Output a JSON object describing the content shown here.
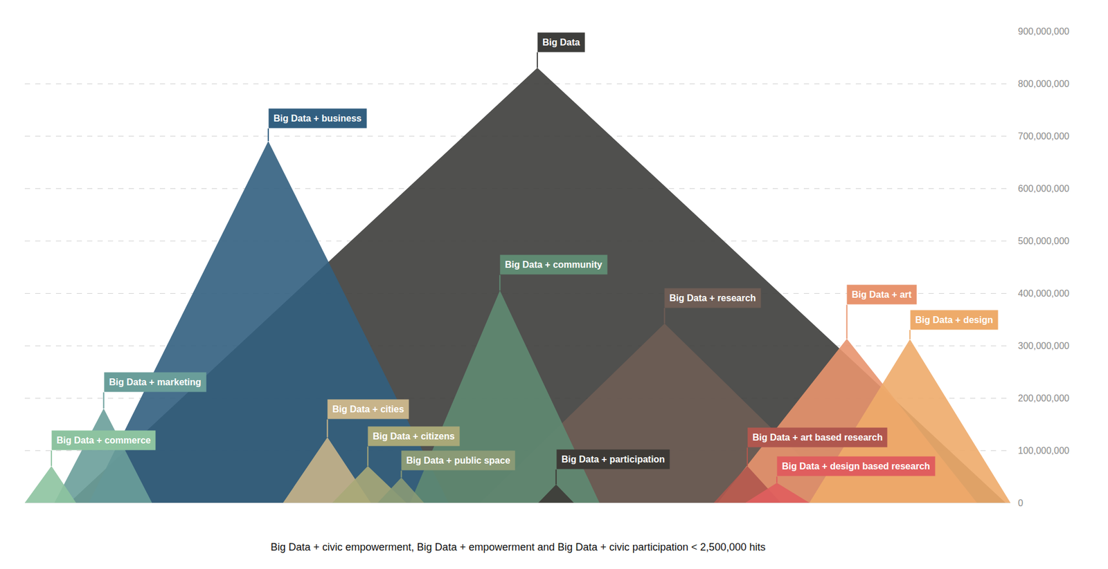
{
  "chart_data": {
    "type": "triangle",
    "note": "Big Data + civic empowerment, Big Data + empowerment and Big Data + civic participation < 2,500,000 hits",
    "xlim": [
      0,
      100
    ],
    "xticks": [],
    "ylim": [
      0,
      900000000
    ],
    "yticks": [
      0,
      {
        "value": 100000000,
        "label": "100,000,000"
      },
      {
        "value": 200000000,
        "label": "200,000,000"
      },
      {
        "value": 300000000,
        "label": "300,000,000"
      },
      {
        "value": 400000000,
        "label": "400,000,000"
      },
      {
        "value": 500000000,
        "label": "500,000,000"
      },
      {
        "value": 600000000,
        "label": "600,000,000"
      },
      {
        "value": 700000000,
        "label": "700,000,000"
      },
      {
        "value": 800000000,
        "label": "800,000,000"
      },
      {
        "value": 900000000,
        "label": "900,000,000"
      }
    ],
    "grid": true,
    "tick_labels": "y",
    "series": [
      {
        "name": "Big Data",
        "color": "#3d3d3b",
        "x": [
          4.5,
          52.0,
          99.5
        ],
        "values": [
          0,
          830000000,
          0
        ]
      },
      {
        "name": "Big Data + business",
        "color": "#325f80",
        "x": [
          6.5,
          24.7,
          43.0
        ],
        "values": [
          0,
          690000000,
          0
        ]
      },
      {
        "name": "Big Data + research",
        "color": "#6e5d55",
        "x": [
          46.2,
          64.9,
          83.5
        ],
        "values": [
          0,
          342000000,
          0
        ]
      },
      {
        "name": "Big Data + community",
        "color": "#5f8a72",
        "x": [
          39.1,
          48.2,
          58.3
        ],
        "values": [
          0,
          405000000,
          0
        ]
      },
      {
        "name": "Big Data + marketing",
        "color": "#6a9e9a",
        "x": [
          3.0,
          8.0,
          12.9
        ],
        "values": [
          0,
          180000000,
          0
        ]
      },
      {
        "name": "Big Data + commerce",
        "color": "#8dc3a0",
        "x": [
          0,
          2.7,
          5.2
        ],
        "values": [
          0,
          70000000,
          0
        ]
      },
      {
        "name": "Big Data + cities",
        "color": "#c8b48a",
        "x": [
          26.2,
          30.7,
          35.1
        ],
        "values": [
          0,
          125000000,
          0
        ]
      },
      {
        "name": "Big Data + citizens",
        "color": "#a9a878",
        "x": [
          31.2,
          34.8,
          38.7
        ],
        "values": [
          0,
          70000000,
          0
        ]
      },
      {
        "name": "Big Data + public space",
        "color": "#8a9a76",
        "x": [
          35.8,
          38.2,
          40.5
        ],
        "values": [
          0,
          48000000,
          0
        ]
      },
      {
        "name": "Big Data + participation",
        "color": "#3d3a36",
        "x": [
          52.1,
          53.9,
          55.7
        ],
        "values": [
          0,
          35000000,
          0
        ]
      },
      {
        "name": "Big Data + art",
        "color": "#e8946e",
        "x": [
          70.3,
          83.4,
          96.6
        ],
        "values": [
          0,
          313000000,
          0
        ]
      },
      {
        "name": "Big Data + design",
        "color": "#eeab6a",
        "x": [
          79.6,
          89.8,
          100
        ],
        "values": [
          0,
          312000000,
          0
        ]
      },
      {
        "name": "Big Data + art based research",
        "color": "#b0574e",
        "x": [
          69.9,
          73.3,
          76.7
        ],
        "values": [
          0,
          70000000,
          0
        ]
      },
      {
        "name": "Big Data + design based research",
        "color": "#e05e5e",
        "x": [
          73.1,
          76.3,
          79.6
        ],
        "values": [
          0,
          38000000,
          0
        ]
      }
    ]
  }
}
